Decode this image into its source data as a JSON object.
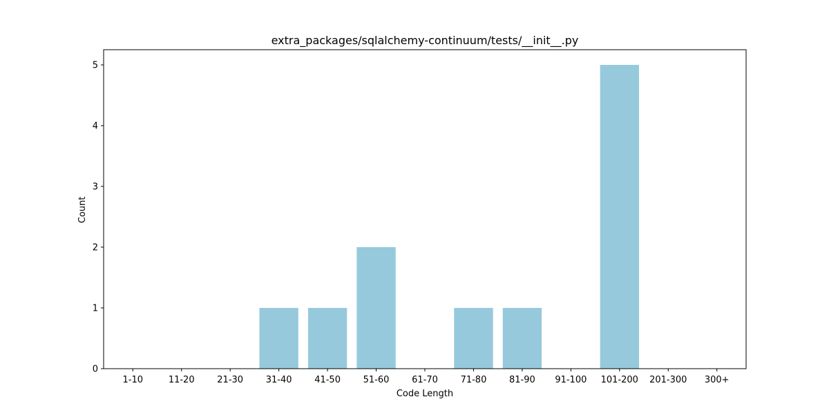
{
  "chart_data": {
    "type": "bar",
    "title": "extra_packages/sqlalchemy-continuum/tests/__init__.py",
    "xlabel": "Code Length",
    "ylabel": "Count",
    "categories": [
      "1-10",
      "11-20",
      "21-30",
      "31-40",
      "41-50",
      "51-60",
      "61-70",
      "71-80",
      "81-90",
      "91-100",
      "101-200",
      "201-300",
      "300+"
    ],
    "values": [
      0,
      0,
      0,
      1,
      1,
      2,
      0,
      1,
      1,
      0,
      5,
      0,
      0
    ],
    "ylim": [
      0,
      5.25
    ],
    "yticks": [
      0,
      1,
      2,
      3,
      4,
      5
    ],
    "grid": false,
    "legend": "none",
    "bar_color": "#96c9dc"
  }
}
